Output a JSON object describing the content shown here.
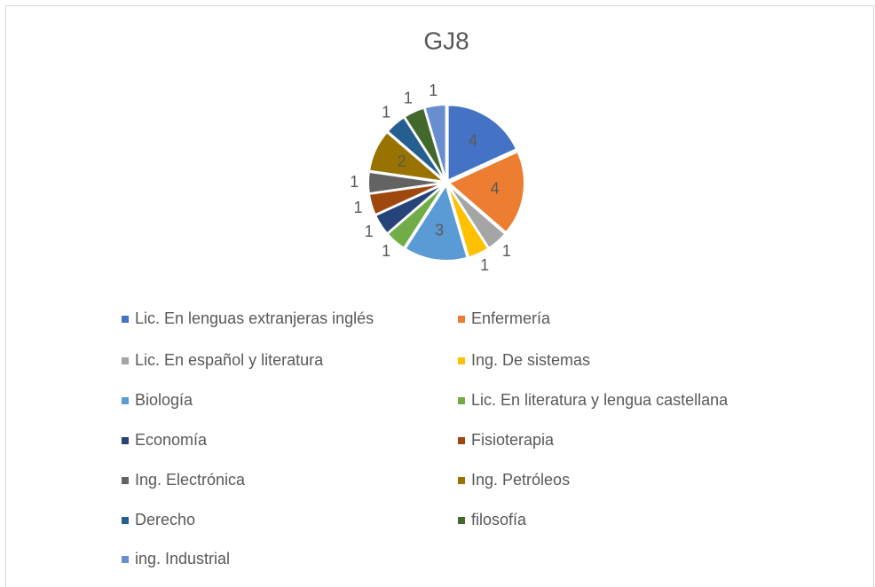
{
  "chart_data": {
    "type": "pie",
    "title": "GJ8",
    "categories": [
      "Lic. En lenguas extranjeras inglés",
      "Enfermería",
      "Lic. En español y literatura",
      "Ing. De sistemas",
      "Biología",
      "Lic. En literatura y lengua castellana",
      "Economía",
      "Fisioterapia",
      "Ing. Electrónica",
      "Ing. Petróleos",
      "Derecho",
      "filosofía",
      "ing. Industrial"
    ],
    "values": [
      4,
      4,
      1,
      1,
      3,
      1,
      1,
      1,
      1,
      2,
      1,
      1,
      1
    ],
    "colors": [
      "#4472c4",
      "#ed7d31",
      "#a5a5a5",
      "#ffc000",
      "#5b9bd5",
      "#70ad47",
      "#264478",
      "#9e480e",
      "#636363",
      "#997300",
      "#255e91",
      "#43682b",
      "#698ed0"
    ],
    "legend": "bottom"
  }
}
